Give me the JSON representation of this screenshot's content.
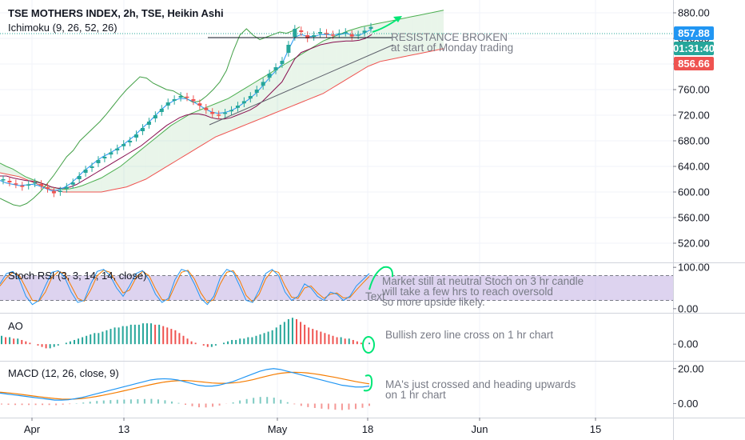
{
  "header": {
    "title": "TSE MOTHERS INDEX, 2h, TSE, Heikin Ashi",
    "indicator": "Ichimoku (9, 26, 52, 26)"
  },
  "price_tags": {
    "last": "857.88",
    "countdown": "01:31:40",
    "low": "856.66"
  },
  "annotations": {
    "resistance_1": "RESISTANCE BROKEN",
    "resistance_2": "at start of Monday trading",
    "stoch_1": "Market still at neutral Stoch on 3 hr candle",
    "stoch_2": "will take a few hrs to reach oversold",
    "stoch_3": "so more upside likely.",
    "text_placeholder": "Text",
    "ao": "Bullish zero line cross on 1 hr chart",
    "macd_1": "MA's just crossed and heading upwards",
    "macd_2": "on 1 hr chart"
  },
  "colors": {
    "up": "#26a69a",
    "down": "#ef5350",
    "cloud_green": "#4caf50",
    "cloud_red": "#ef5350",
    "tenkan": "#2196f3",
    "kijun": "#880e4f",
    "chikou": "#43a047",
    "stoch_band": "#b39ddb",
    "stoch_k": "#2196f3",
    "stoch_d": "#f57c00",
    "macd": "#2196f3",
    "signal": "#f57c00",
    "ao_up": "#26a69a",
    "ao_down": "#ef5350",
    "tag_blue": "#2196f3",
    "tag_teal": "#26a69a",
    "tag_red": "#ef5350",
    "annotation_green": "#00e676"
  },
  "chart_data": [
    {
      "type": "candlestick",
      "title": "TSE MOTHERS INDEX, 2h, TSE, Heikin Ashi",
      "indicator": "Ichimoku (9, 26, 52, 26)",
      "x_ticks": [
        "Apr",
        "13",
        "May",
        "18",
        "Jun",
        "15"
      ],
      "y_ticks": [
        520,
        560,
        600,
        640,
        680,
        720,
        760,
        800,
        840,
        880
      ],
      "ylim": [
        490,
        900
      ],
      "last_price": 857.88,
      "close_series": [
        620,
        615,
        612,
        608,
        612,
        615,
        610,
        605,
        598,
        602,
        608,
        615,
        625,
        635,
        640,
        650,
        655,
        662,
        668,
        675,
        680,
        690,
        700,
        710,
        720,
        730,
        740,
        745,
        750,
        748,
        742,
        735,
        728,
        722,
        720,
        724,
        728,
        735,
        742,
        750,
        760,
        772,
        785,
        795,
        805,
        830,
        855,
        850,
        840,
        845,
        850,
        847,
        845,
        848,
        850,
        843,
        846,
        852,
        858
      ],
      "tenkan": [
        618,
        614,
        612,
        610,
        611,
        612,
        610,
        606,
        602,
        603,
        607,
        613,
        622,
        632,
        640,
        648,
        655,
        660,
        666,
        672,
        680,
        688,
        698,
        707,
        717,
        727,
        736,
        742,
        746,
        746,
        742,
        736,
        730,
        725,
        723,
        724,
        727,
        732,
        739,
        746,
        755,
        766,
        778,
        789,
        800,
        822,
        842,
        846,
        843,
        843,
        846,
        846,
        845,
        846,
        848,
        845,
        845,
        849,
        855
      ],
      "kijun": [
        625,
        625,
        622,
        620,
        618,
        617,
        615,
        612,
        608,
        606,
        606,
        608,
        612,
        618,
        624,
        630,
        636,
        642,
        648,
        654,
        660,
        666,
        672,
        680,
        688,
        696,
        704,
        710,
        716,
        720,
        722,
        722,
        720,
        716,
        714,
        714,
        716,
        720,
        724,
        728,
        734,
        742,
        752,
        762,
        772,
        790,
        808,
        818,
        822,
        826,
        830,
        832,
        834,
        835,
        836,
        836,
        837,
        840,
        846
      ],
      "senkou_a": [
        645,
        640,
        636,
        630,
        624,
        620,
        616,
        612,
        608,
        606,
        604,
        605,
        607,
        610,
        614,
        618,
        622,
        628,
        634,
        640,
        648,
        656,
        664,
        672,
        680,
        688,
        696,
        704,
        710,
        716,
        722,
        726,
        730,
        734,
        738,
        742,
        746,
        752,
        758,
        764,
        770,
        776,
        782,
        788,
        794,
        800,
        806,
        812,
        818,
        824,
        830,
        836,
        840,
        844,
        848,
        852,
        855,
        858,
        860,
        862,
        864,
        866,
        868,
        870,
        872,
        874,
        876,
        878,
        880,
        882,
        884
      ],
      "senkou_b": [
        630,
        628,
        626,
        624,
        620,
        616,
        612,
        608,
        604,
        602,
        600,
        600,
        600,
        600,
        600,
        600,
        600,
        602,
        604,
        606,
        608,
        612,
        616,
        620,
        626,
        632,
        638,
        644,
        650,
        656,
        662,
        668,
        674,
        680,
        686,
        690,
        694,
        698,
        702,
        706,
        710,
        714,
        718,
        722,
        726,
        730,
        734,
        738,
        742,
        746,
        750,
        754,
        760,
        766,
        772,
        778,
        784,
        790,
        796,
        800,
        804,
        806,
        808,
        810,
        812,
        814,
        816,
        818,
        820,
        822,
        824
      ],
      "chikou": [
        590,
        585,
        580,
        578,
        582,
        590,
        600,
        612,
        625,
        640,
        655,
        665,
        680,
        690,
        700,
        710,
        722,
        735,
        748,
        760,
        770,
        780,
        778,
        770,
        765,
        760,
        758,
        752,
        746,
        740,
        742,
        750,
        760,
        772,
        790,
        820,
        845,
        855,
        845,
        838,
        842,
        846,
        850,
        848,
        852,
        858
      ]
    },
    {
      "type": "line",
      "title": "Stoch RSI (3, 3, 14, 14, close)",
      "y_ticks": [
        0,
        100
      ],
      "ylim": [
        -10,
        110
      ],
      "bands": [
        20,
        80
      ],
      "k": [
        60,
        85,
        90,
        70,
        30,
        10,
        20,
        55,
        88,
        92,
        75,
        40,
        15,
        20,
        60,
        90,
        95,
        80,
        50,
        30,
        55,
        85,
        92,
        70,
        35,
        15,
        25,
        70,
        95,
        90,
        60,
        25,
        10,
        30,
        75,
        95,
        88,
        55,
        20,
        15,
        45,
        85,
        95,
        80,
        40,
        20,
        30,
        60,
        50,
        30,
        20,
        40,
        35,
        20,
        30,
        55,
        70,
        85
      ],
      "d": [
        55,
        75,
        88,
        80,
        50,
        20,
        18,
        40,
        75,
        90,
        85,
        55,
        25,
        18,
        45,
        80,
        93,
        88,
        62,
        38,
        45,
        75,
        90,
        80,
        48,
        22,
        20,
        55,
        88,
        93,
        72,
        38,
        15,
        22,
        60,
        88,
        92,
        68,
        32,
        16,
        35,
        72,
        92,
        88,
        55,
        28,
        25,
        50,
        55,
        38,
        25,
        35,
        38,
        26,
        27,
        45,
        62,
        78
      ]
    },
    {
      "type": "bar",
      "title": "AO",
      "y_ticks": [
        0
      ],
      "ylim": [
        -12,
        22
      ],
      "values": [
        6,
        5,
        5,
        4,
        4,
        3,
        2,
        1,
        0,
        -1,
        -2,
        -3,
        -3,
        -2,
        -1,
        0,
        1,
        2,
        3,
        4,
        5,
        6,
        7,
        8,
        8,
        9,
        10,
        11,
        12,
        12,
        13,
        13,
        14,
        14,
        14,
        15,
        15,
        15,
        14,
        14,
        13,
        12,
        11,
        10,
        8,
        6,
        4,
        2,
        1,
        0,
        -1,
        -2,
        -2,
        -1,
        0,
        1,
        2,
        3,
        3,
        4,
        4,
        5,
        5,
        6,
        7,
        8,
        9,
        10,
        12,
        14,
        16,
        18,
        19,
        18,
        16,
        14,
        12,
        11,
        10,
        9,
        8,
        7,
        6,
        5,
        5,
        4,
        4,
        3,
        2,
        1,
        0,
        1
      ]
    },
    {
      "type": "line",
      "title": "MACD (12, 26, close, 9)",
      "y_ticks": [
        0,
        20
      ],
      "ylim": [
        -8,
        24
      ],
      "macd": [
        6,
        5.5,
        5,
        4.5,
        4,
        3.5,
        3,
        2.5,
        2,
        2,
        2.2,
        2.8,
        3.5,
        4.5,
        5.5,
        6.5,
        7.5,
        8.5,
        9.5,
        10.5,
        11.5,
        12.5,
        13.5,
        14,
        14.2,
        14,
        13.5,
        12.5,
        11.5,
        10.5,
        10,
        10,
        10.5,
        11.5,
        12.5,
        14,
        15.5,
        17,
        18.5,
        19.5,
        20,
        19.5,
        18.5,
        17.5,
        16.5,
        15.5,
        14.5,
        13.5,
        12.5,
        11.5,
        10.5,
        10,
        9.5,
        9.5,
        10
      ],
      "signal": [
        6.5,
        6.2,
        5.8,
        5.3,
        4.8,
        4.3,
        3.8,
        3.3,
        2.9,
        2.6,
        2.5,
        2.6,
        2.9,
        3.4,
        4,
        4.7,
        5.5,
        6.3,
        7.2,
        8.1,
        9,
        9.9,
        10.8,
        11.6,
        12.3,
        12.8,
        13.1,
        13.2,
        13,
        12.6,
        12.2,
        11.8,
        11.6,
        11.6,
        11.8,
        12.2,
        12.9,
        13.7,
        14.7,
        15.7,
        16.6,
        17.3,
        17.7,
        17.9,
        17.8,
        17.5,
        17,
        16.4,
        15.7,
        15,
        14.2,
        13.4,
        12.6,
        11.9,
        11.3
      ],
      "histogram": [
        -0.5,
        -0.7,
        -0.8,
        -0.8,
        -0.8,
        -0.8,
        -0.8,
        -0.8,
        -0.9,
        -0.6,
        -0.3,
        0.2,
        0.6,
        1.1,
        1.5,
        1.8,
        2,
        2.2,
        2.3,
        2.4,
        2.5,
        2.6,
        2.7,
        2.4,
        1.9,
        1.2,
        0.4,
        -0.7,
        -1.5,
        -2.1,
        -2.2,
        -1.8,
        -1.1,
        -0.1,
        0.7,
        1.8,
        2.6,
        3.3,
        3.8,
        3.8,
        3.4,
        2.2,
        0.8,
        -0.4,
        -1.3,
        -2,
        -2.5,
        -2.9,
        -3.2,
        -3.5,
        -3.7,
        -3.4,
        -3.1,
        -2.4,
        -1.3
      ]
    }
  ]
}
